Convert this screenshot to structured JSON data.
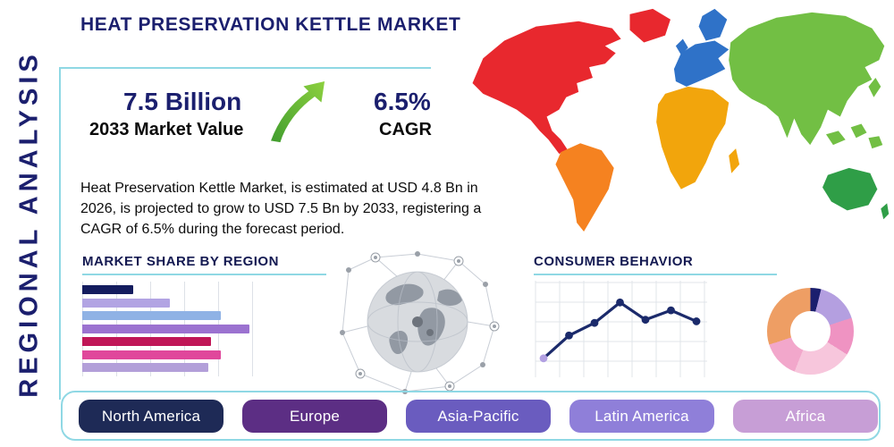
{
  "page": {
    "title": "HEAT PRESERVATION KETTLE MARKET",
    "side_label": "REGIONAL ANALYSIS"
  },
  "stats": {
    "market_value": "7.5 Billion",
    "market_value_caption": "2033 Market Value",
    "cagr_value": "6.5%",
    "cagr_caption": "CAGR",
    "description": "Heat Preservation Kettle Market, is estimated at USD 4.8 Bn in 2026, is projected to grow to USD 7.5 Bn by 2033, registering a CAGR of 6.5% during the forecast period."
  },
  "map": {
    "colors": {
      "north_america": "#e8282e",
      "greenland": "#e8282e",
      "south_america": "#f58220",
      "europe": "#2f72c8",
      "africa": "#f2a50c",
      "asia": "#72bf44",
      "australia": "#2f9e47",
      "islands": "#72bf44"
    }
  },
  "regions": [
    {
      "label": "North America",
      "color": "#1e2a56"
    },
    {
      "label": "Europe",
      "color": "#5c2e84"
    },
    {
      "label": "Asia-Pacific",
      "color": "#6a5cbf"
    },
    {
      "label": "Latin America",
      "color": "#8f7fd9"
    },
    {
      "label": "Africa",
      "color": "#c79ed6"
    }
  ],
  "chart_data": [
    {
      "type": "bar",
      "title": "MARKET SHARE BY REGION",
      "orientation": "horizontal",
      "values": [
        25,
        43,
        68,
        82,
        63,
        68,
        62
      ],
      "colors": [
        "#141c5e",
        "#b2a4e3",
        "#8fb2e5",
        "#9b72d0",
        "#c01657",
        "#e0479b",
        "#b39fd9"
      ],
      "grid": "vertical"
    },
    {
      "type": "line",
      "title": "CONSUMER BEHAVIOR",
      "x": [
        1,
        2,
        3,
        4,
        5,
        6,
        7
      ],
      "values": [
        1.5,
        4.4,
        6.0,
        8.6,
        6.4,
        7.6,
        6.2
      ],
      "ylim": [
        0,
        10
      ],
      "line_color": "#1b2a6b",
      "marker_color": "#1b2a6b",
      "first_marker_color": "#b2a0e2",
      "grid": "both"
    },
    {
      "type": "pie",
      "donut": true,
      "values": [
        4,
        16,
        14,
        22,
        14,
        30
      ],
      "colors": [
        "#1b1f6e",
        "#b49fe0",
        "#ef93c2",
        "#f7c6dc",
        "#f2a7cb",
        "#ee9e64"
      ]
    }
  ]
}
